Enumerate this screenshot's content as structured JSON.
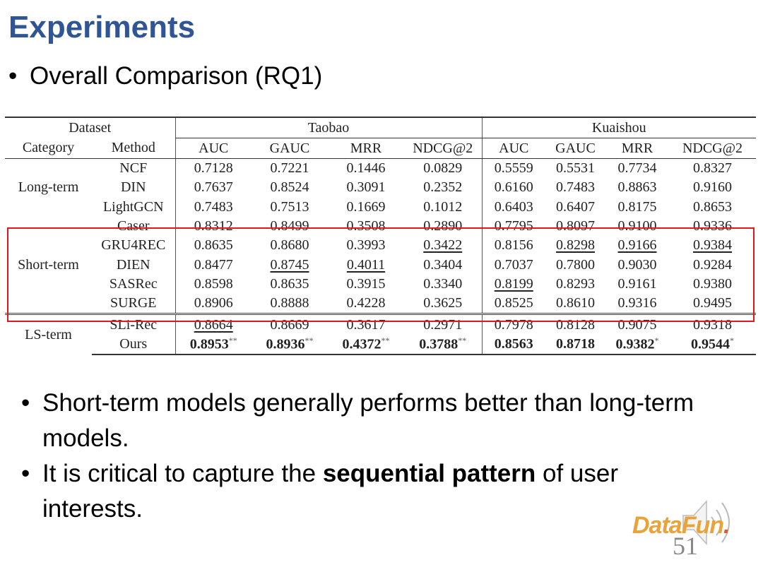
{
  "slide": {
    "title": "Experiments",
    "subtitle": "Overall Comparison (RQ1)",
    "bullet_char": "•",
    "bullets": [
      {
        "pre": "Short-term models generally performs better than long-term models.",
        "bold": "",
        "post": ""
      },
      {
        "pre": "It is critical to capture the ",
        "bold": "sequential pattern",
        "post": " of user interests."
      }
    ],
    "page_number": "51",
    "logo": {
      "a": "DataFun",
      "b": "."
    }
  },
  "table": {
    "dataset_label": "Dataset",
    "datasets": [
      "Taobao",
      "Kuaishou"
    ],
    "category_label": "Category",
    "method_label": "Method",
    "metrics": [
      "AUC",
      "GAUC",
      "MRR",
      "NDCG@2",
      "AUC",
      "GAUC",
      "MRR",
      "NDCG@2"
    ],
    "groups": [
      {
        "category": "Long-term",
        "rows": [
          {
            "method": "NCF",
            "cells": [
              {
                "v": "0.7128"
              },
              {
                "v": "0.7221"
              },
              {
                "v": "0.1446"
              },
              {
                "v": "0.0829"
              },
              {
                "v": "0.5559"
              },
              {
                "v": "0.5531"
              },
              {
                "v": "0.7734"
              },
              {
                "v": "0.8327"
              }
            ]
          },
          {
            "method": "DIN",
            "cells": [
              {
                "v": "0.7637"
              },
              {
                "v": "0.8524"
              },
              {
                "v": "0.3091"
              },
              {
                "v": "0.2352"
              },
              {
                "v": "0.6160"
              },
              {
                "v": "0.7483"
              },
              {
                "v": "0.8863"
              },
              {
                "v": "0.9160"
              }
            ]
          },
          {
            "method": "LightGCN",
            "cells": [
              {
                "v": "0.7483"
              },
              {
                "v": "0.7513"
              },
              {
                "v": "0.1669"
              },
              {
                "v": "0.1012"
              },
              {
                "v": "0.6403"
              },
              {
                "v": "0.6407"
              },
              {
                "v": "0.8175"
              },
              {
                "v": "0.8653"
              }
            ]
          }
        ]
      },
      {
        "category": "Short-term",
        "rows": [
          {
            "method": "Caser",
            "cells": [
              {
                "v": "0.8312"
              },
              {
                "v": "0.8499"
              },
              {
                "v": "0.3508"
              },
              {
                "v": "0.2890"
              },
              {
                "v": "0.7795"
              },
              {
                "v": "0.8097"
              },
              {
                "v": "0.9100"
              },
              {
                "v": "0.9336"
              }
            ]
          },
          {
            "method": "GRU4REC",
            "cells": [
              {
                "v": "0.8635"
              },
              {
                "v": "0.8680"
              },
              {
                "v": "0.3993"
              },
              {
                "v": "0.3422",
                "u": true
              },
              {
                "v": "0.8156"
              },
              {
                "v": "0.8298",
                "u": true
              },
              {
                "v": "0.9166",
                "u": true
              },
              {
                "v": "0.9384",
                "u": true
              }
            ]
          },
          {
            "method": "DIEN",
            "cells": [
              {
                "v": "0.8477"
              },
              {
                "v": "0.8745",
                "u": true
              },
              {
                "v": "0.4011",
                "u": true
              },
              {
                "v": "0.3404"
              },
              {
                "v": "0.7037"
              },
              {
                "v": "0.7800"
              },
              {
                "v": "0.9030"
              },
              {
                "v": "0.9284"
              }
            ]
          },
          {
            "method": "SASRec",
            "cells": [
              {
                "v": "0.8598"
              },
              {
                "v": "0.8635"
              },
              {
                "v": "0.3915"
              },
              {
                "v": "0.3340"
              },
              {
                "v": "0.8199",
                "u": true
              },
              {
                "v": "0.8293"
              },
              {
                "v": "0.9161"
              },
              {
                "v": "0.9380"
              }
            ]
          },
          {
            "method": "SURGE",
            "cells": [
              {
                "v": "0.8906"
              },
              {
                "v": "0.8888"
              },
              {
                "v": "0.4228"
              },
              {
                "v": "0.3625"
              },
              {
                "v": "0.8525"
              },
              {
                "v": "0.8610"
              },
              {
                "v": "0.9316"
              },
              {
                "v": "0.9495"
              }
            ]
          }
        ]
      },
      {
        "category": "LS-term",
        "rows": [
          {
            "method": "SLi-Rec",
            "cells": [
              {
                "v": "0.8664",
                "u": true
              },
              {
                "v": "0.8669"
              },
              {
                "v": "0.3617"
              },
              {
                "v": "0.2971"
              },
              {
                "v": "0.7978"
              },
              {
                "v": "0.8128"
              },
              {
                "v": "0.9075"
              },
              {
                "v": "0.9318"
              }
            ]
          },
          {
            "method": "Ours",
            "cells": [
              {
                "v": "0.8953",
                "b": true,
                "sup": "**"
              },
              {
                "v": "0.8936",
                "b": true,
                "sup": "**"
              },
              {
                "v": "0.4372",
                "b": true,
                "sup": "**"
              },
              {
                "v": "0.3788",
                "b": true,
                "sup": "**"
              },
              {
                "v": "0.8563",
                "b": true
              },
              {
                "v": "0.8718",
                "b": true
              },
              {
                "v": "0.9382",
                "b": true,
                "sup": "*"
              },
              {
                "v": "0.9544",
                "b": true,
                "sup": "*"
              }
            ]
          }
        ]
      }
    ]
  },
  "colors": {
    "title": "#2f5597",
    "highlight_box": "#e01a1a"
  }
}
